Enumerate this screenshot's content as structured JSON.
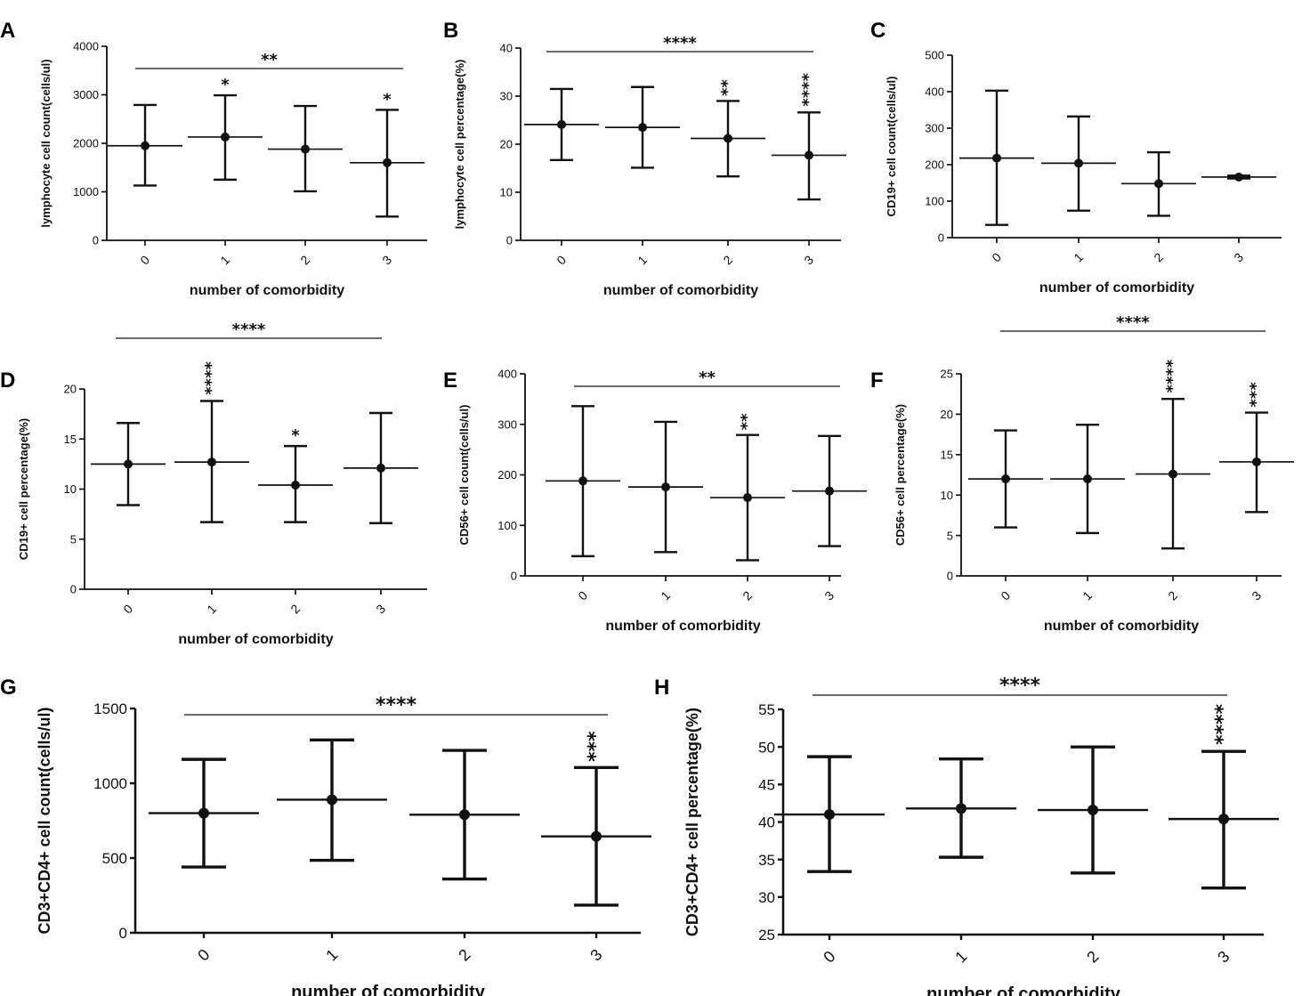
{
  "figure": {
    "background": "#ffffff",
    "ink": "#111111"
  },
  "chart_data": [
    {
      "id": "A",
      "type": "errorbar",
      "panel_letter": "A",
      "categories": [
        "0",
        "1",
        "2",
        "3"
      ],
      "xlabel": "number of comorbidity",
      "ylabel": "lymphocyte cell count(cells/ul)",
      "ylim": [
        0,
        4000
      ],
      "yticks": [
        "0",
        "1000",
        "2000",
        "3000",
        "4000"
      ],
      "series": [
        {
          "name": "lymphocyte cell count",
          "mean": [
            1950,
            2130,
            1880,
            1600
          ],
          "low": [
            1130,
            1250,
            1010,
            490
          ],
          "high": [
            2790,
            2990,
            2770,
            2690
          ]
        }
      ],
      "overall_significance": "**",
      "group_significance": [
        "",
        "*",
        "",
        "*"
      ]
    },
    {
      "id": "B",
      "type": "errorbar",
      "panel_letter": "B",
      "categories": [
        "0",
        "1",
        "2",
        "3"
      ],
      "xlabel": "number of comorbidity",
      "ylabel": "lymphocyte cell percentage(%)",
      "ylim": [
        0,
        40
      ],
      "yticks": [
        "0",
        "10",
        "20",
        "30",
        "40"
      ],
      "series": [
        {
          "name": "lymphocyte cell percentage",
          "mean": [
            24.1,
            23.5,
            21.2,
            17.7
          ],
          "low": [
            16.7,
            15.1,
            13.3,
            8.5
          ],
          "high": [
            31.5,
            31.9,
            29.0,
            26.6
          ]
        }
      ],
      "overall_significance": "****",
      "group_significance": [
        "",
        "",
        "**",
        "****"
      ]
    },
    {
      "id": "C",
      "type": "errorbar",
      "panel_letter": "C",
      "categories": [
        "0",
        "1",
        "2",
        "3"
      ],
      "xlabel": "number of comorbidity",
      "ylabel": "CD19+ cell count(cells/ul)",
      "ylim": [
        0,
        500
      ],
      "yticks": [
        "0",
        "100",
        "200",
        "300",
        "400",
        "500"
      ],
      "series": [
        {
          "name": "CD19+ cell count",
          "mean": [
            218,
            204,
            148,
            166
          ],
          "low": [
            35,
            74,
            60,
            162
          ],
          "high": [
            403,
            332,
            234,
            170
          ]
        }
      ],
      "overall_significance": "",
      "group_significance": [
        "",
        "",
        "",
        ""
      ]
    },
    {
      "id": "D",
      "type": "errorbar",
      "panel_letter": "D",
      "categories": [
        "0",
        "1",
        "2",
        "3"
      ],
      "xlabel": "number of comorbidity",
      "ylabel": "CD19+ cell percentage(%)",
      "ylim": [
        0,
        20
      ],
      "yticks": [
        "0",
        "5",
        "10",
        "15",
        "20"
      ],
      "series": [
        {
          "name": "CD19+ cell percentage",
          "mean": [
            12.5,
            12.7,
            10.4,
            12.1
          ],
          "low": [
            8.4,
            6.7,
            6.7,
            6.6
          ],
          "high": [
            16.6,
            18.8,
            14.3,
            17.6
          ]
        }
      ],
      "overall_significance": "****",
      "group_significance": [
        "",
        "****",
        "*",
        ""
      ]
    },
    {
      "id": "E",
      "type": "errorbar",
      "panel_letter": "E",
      "categories": [
        "0",
        "1",
        "2",
        "3"
      ],
      "xlabel": "number of comorbidity",
      "ylabel": "CD56+ cell count(cells/ul)",
      "ylim": [
        0,
        400
      ],
      "yticks": [
        "0",
        "100",
        "200",
        "300",
        "400"
      ],
      "series": [
        {
          "name": "CD56+ cell count",
          "mean": [
            188,
            176,
            155,
            168
          ],
          "low": [
            39,
            47,
            31,
            59
          ],
          "high": [
            336,
            305,
            279,
            277
          ]
        }
      ],
      "overall_significance": "**",
      "group_significance": [
        "",
        "",
        "**",
        ""
      ]
    },
    {
      "id": "F",
      "type": "errorbar",
      "panel_letter": "F",
      "categories": [
        "0",
        "1",
        "2",
        "3"
      ],
      "xlabel": "number of comorbidity",
      "ylabel": "CD56+ cell percentage(%)",
      "ylim": [
        0,
        25
      ],
      "yticks": [
        "0",
        "5",
        "10",
        "15",
        "20",
        "25"
      ],
      "series": [
        {
          "name": "CD56+ cell percentage",
          "mean": [
            12.0,
            12.0,
            12.6,
            14.1
          ],
          "low": [
            6.0,
            5.3,
            3.4,
            7.9
          ],
          "high": [
            18.0,
            18.7,
            21.9,
            20.2
          ]
        }
      ],
      "overall_significance": "****",
      "group_significance": [
        "",
        "",
        "****",
        "***"
      ]
    },
    {
      "id": "G",
      "type": "errorbar",
      "panel_letter": "G",
      "categories": [
        "0",
        "1",
        "2",
        "3"
      ],
      "xlabel": "number of comorbidity",
      "ylabel": "CD3+CD4+ cell count(cells/ul)",
      "ylim": [
        0,
        1500
      ],
      "yticks": [
        "0",
        "500",
        "1000",
        "1500"
      ],
      "series": [
        {
          "name": "CD3+CD4+ cell count",
          "mean": [
            800,
            890,
            790,
            645
          ],
          "low": [
            440,
            485,
            360,
            185
          ],
          "high": [
            1160,
            1290,
            1220,
            1105
          ]
        }
      ],
      "overall_significance": "****",
      "group_significance": [
        "",
        "",
        "",
        "***"
      ]
    },
    {
      "id": "H",
      "type": "errorbar",
      "panel_letter": "H",
      "categories": [
        "0",
        "1",
        "2",
        "3"
      ],
      "xlabel": "number of comorbidity",
      "ylabel": "CD3+CD4+ cell percentage(%)",
      "ylim": [
        25,
        55
      ],
      "yticks": [
        "25",
        "30",
        "35",
        "40",
        "45",
        "50",
        "55"
      ],
      "series": [
        {
          "name": "CD3+CD4+ cell percentage",
          "mean": [
            41.0,
            41.8,
            41.6,
            40.4
          ],
          "low": [
            33.4,
            35.3,
            33.2,
            31.2
          ],
          "high": [
            48.7,
            48.4,
            50.0,
            49.4
          ]
        }
      ],
      "overall_significance": "****",
      "group_significance": [
        "",
        "",
        "",
        "****"
      ]
    }
  ]
}
